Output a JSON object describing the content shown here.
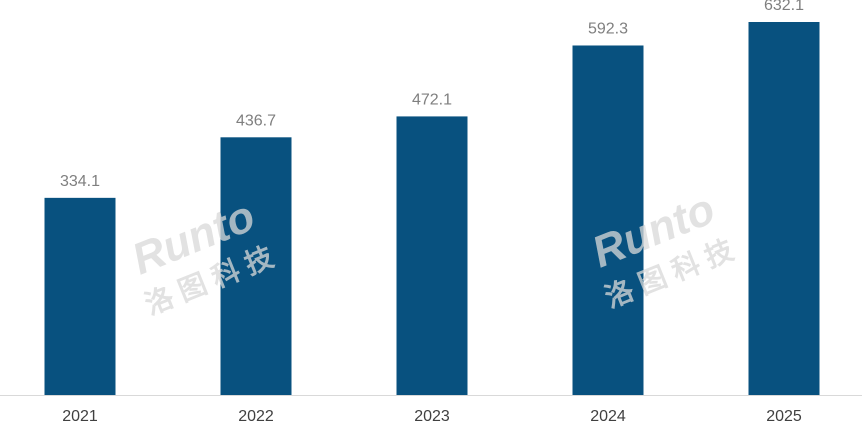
{
  "chart_data": {
    "type": "bar",
    "title": "",
    "xlabel": "",
    "ylabel": "",
    "categories": [
      "2021",
      "2022",
      "2023",
      "2024",
      "2025"
    ],
    "values": [
      334.1,
      436.7,
      472.1,
      592.3,
      632.1
    ],
    "data_labels": [
      "334.1",
      "436.7",
      "472.1",
      "592.3",
      "632.1"
    ],
    "ylim": [
      0,
      632.1
    ],
    "grid": false,
    "legend": "none",
    "colors": {
      "bar": "#08517f",
      "label": "#7f7f7f",
      "axis": "#d9d9d9"
    }
  },
  "watermark": {
    "latin": "Runto",
    "chinese": "洛图科技"
  }
}
